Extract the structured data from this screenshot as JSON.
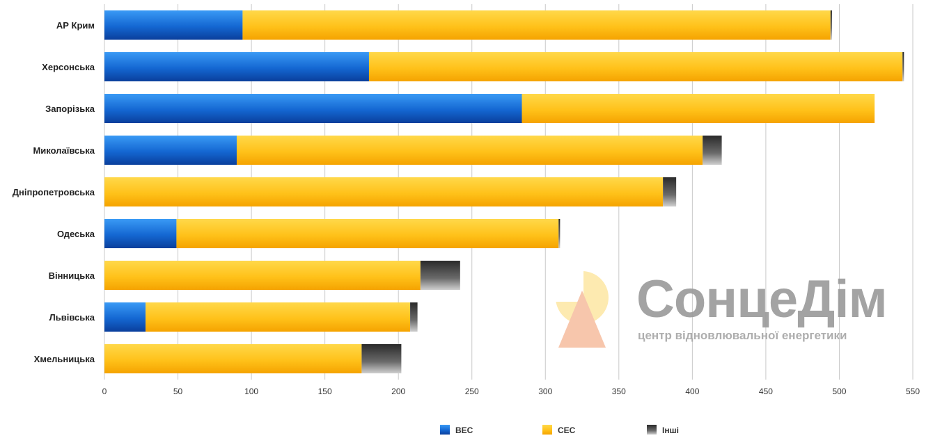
{
  "chart_data": {
    "type": "bar",
    "orientation": "horizontal",
    "stacked": true,
    "categories": [
      "АР Крим",
      "Херсонська",
      "Запорізька",
      "Миколаївська",
      "Дніпропетровська",
      "Одеська",
      "Вінницька",
      "Львівська",
      "Хмельницька"
    ],
    "series": [
      {
        "name": "ВЕС",
        "color": "#1a6fd6",
        "values": [
          94,
          180,
          284,
          90,
          0,
          49,
          0,
          28,
          0
        ]
      },
      {
        "name": "СЕС",
        "color": "#ffc41f",
        "values": [
          400,
          363,
          240,
          317,
          380,
          260,
          215,
          180,
          175
        ]
      },
      {
        "name": "Інші",
        "color": "#5a5a5a",
        "values": [
          1,
          1,
          0,
          13,
          9,
          1,
          27,
          5,
          27
        ]
      }
    ],
    "xlim": [
      0,
      550
    ],
    "xticks": [
      0,
      50,
      100,
      150,
      200,
      250,
      300,
      350,
      400,
      450,
      500,
      550
    ],
    "grid": true,
    "legend_position": "bottom"
  },
  "watermark": {
    "title": "СонцеДім",
    "subtitle": "центр відновлювальної енергетики"
  }
}
